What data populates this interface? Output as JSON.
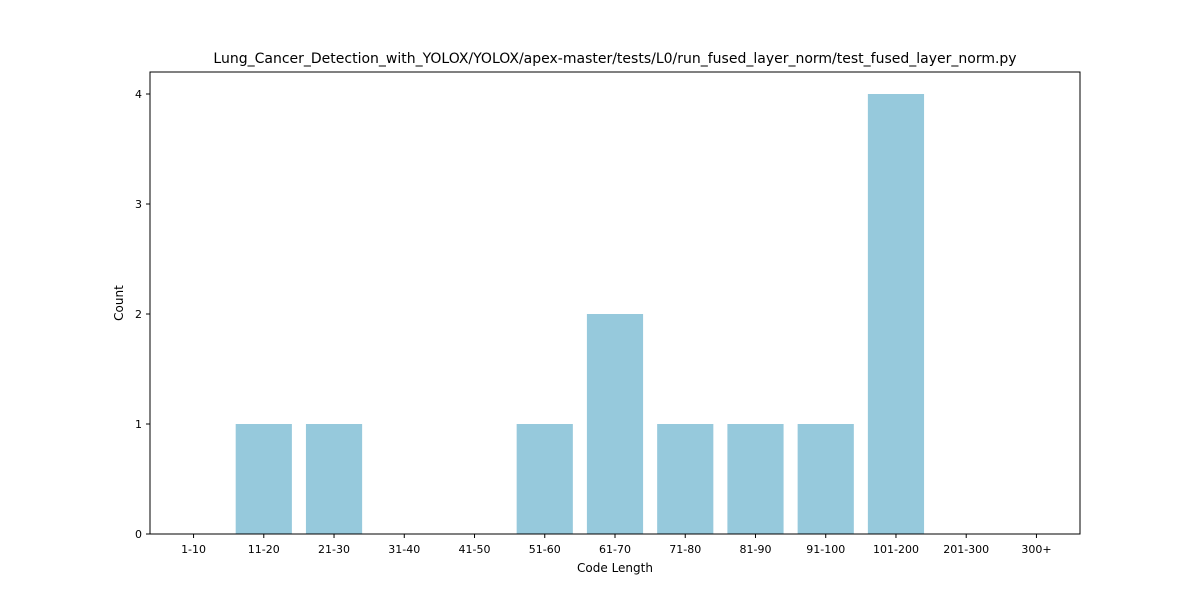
{
  "chart_data": {
    "type": "bar",
    "title": "Lung_Cancer_Detection_with_YOLOX/YOLOX/apex-master/tests/L0/run_fused_layer_norm/test_fused_layer_norm.py",
    "xlabel": "Code Length",
    "ylabel": "Count",
    "categories": [
      "1-10",
      "11-20",
      "21-30",
      "31-40",
      "41-50",
      "51-60",
      "61-70",
      "71-80",
      "81-90",
      "91-100",
      "101-200",
      "201-300",
      "300+"
    ],
    "values": [
      0,
      1,
      1,
      0,
      0,
      1,
      2,
      1,
      1,
      1,
      4,
      0,
      0
    ],
    "ylim": [
      0,
      4.2
    ],
    "yticks": [
      "0",
      "1",
      "2",
      "3",
      "4"
    ],
    "grid": false,
    "bar_color": "#96c9dc"
  }
}
